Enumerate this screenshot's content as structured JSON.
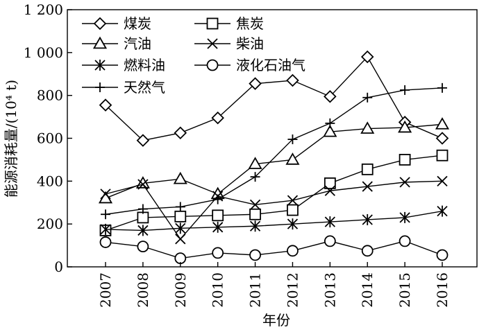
{
  "chart_data": {
    "type": "line",
    "xlabel": "年份",
    "ylabel": "能源消耗量/(10⁴ t)",
    "ylim": [
      0,
      1200
    ],
    "yticks": [
      0,
      200,
      400,
      600,
      800,
      1000,
      1200
    ],
    "ytick_labels": [
      "0",
      "200",
      "400",
      "600",
      "800",
      "1 000",
      "1 200"
    ],
    "x": [
      "2007",
      "2008",
      "2009",
      "2010",
      "2011",
      "2012",
      "2013",
      "2014",
      "2015",
      "2016"
    ],
    "grid": false,
    "legend_position": "top-left",
    "series": [
      {
        "name": "煤炭",
        "marker": "diamond",
        "values": [
          755,
          590,
          625,
          695,
          855,
          870,
          795,
          980,
          675,
          600
        ]
      },
      {
        "name": "焦炭",
        "marker": "square",
        "values": [
          170,
          230,
          235,
          240,
          245,
          265,
          390,
          455,
          500,
          520
        ]
      },
      {
        "name": "汽油",
        "marker": "triangle",
        "values": [
          320,
          390,
          410,
          340,
          480,
          500,
          630,
          645,
          650,
          665
        ]
      },
      {
        "name": "柴油",
        "marker": "x",
        "values": [
          340,
          385,
          130,
          330,
          290,
          310,
          355,
          375,
          395,
          400
        ]
      },
      {
        "name": "燃料油",
        "marker": "asterisk",
        "values": [
          175,
          170,
          180,
          185,
          190,
          200,
          210,
          220,
          230,
          260
        ]
      },
      {
        "name": "液化石油气",
        "marker": "circle",
        "values": [
          115,
          95,
          40,
          65,
          55,
          75,
          120,
          75,
          120,
          55
        ]
      },
      {
        "name": "天然气",
        "marker": "plus",
        "values": [
          245,
          270,
          280,
          315,
          420,
          595,
          670,
          790,
          825,
          835
        ]
      }
    ]
  }
}
